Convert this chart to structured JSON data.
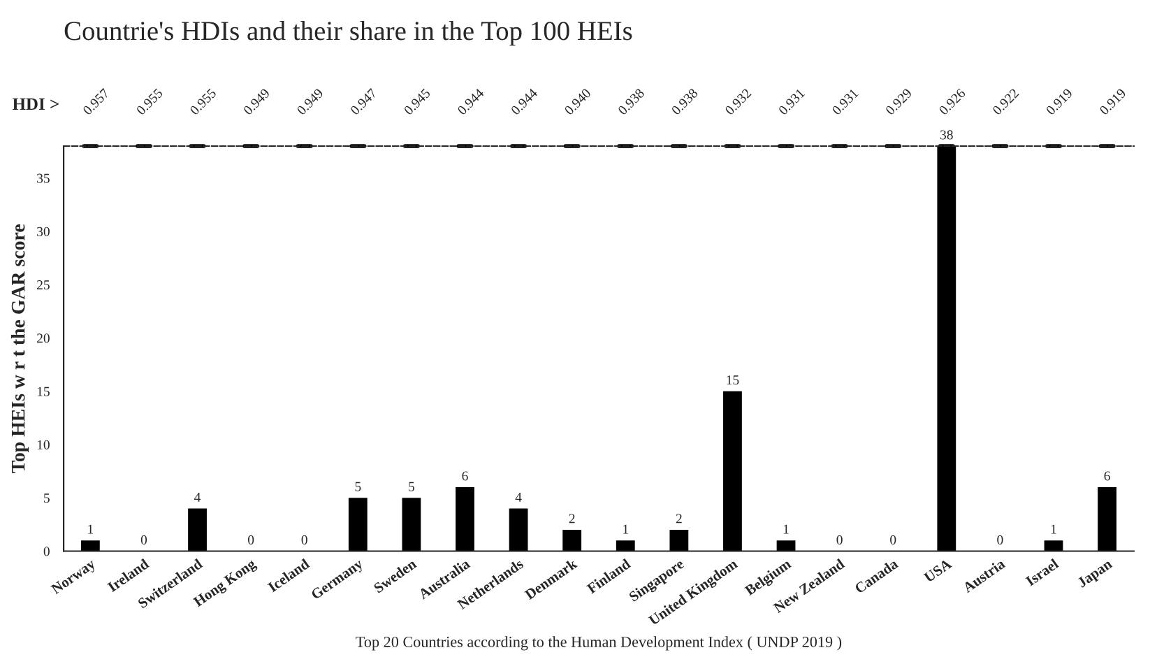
{
  "chart_data": {
    "type": "bar",
    "title": "Countrie's HDIs and their share in the Top 100 HEIs",
    "xlabel": "Top 20 Countries according to the Human Development Index ( UNDP 2019 )",
    "ylabel": "Top HEIs w r t the GAR score",
    "categories": [
      "Norway",
      "Ireland",
      "Switzerland",
      "Hong Kong",
      "Iceland",
      "Germany",
      "Sweden",
      "Australia",
      "Netherlands",
      "Denmark",
      "Finland",
      "Singapore",
      "United Kingdom",
      "Belgium",
      "New Zealand",
      "Canada",
      "USA",
      "Austria",
      "Israel",
      "Japan"
    ],
    "values": [
      1,
      0,
      4,
      0,
      0,
      5,
      5,
      6,
      4,
      2,
      1,
      2,
      15,
      1,
      0,
      0,
      38,
      0,
      1,
      6
    ],
    "color": "#000000",
    "data_labels": true,
    "ylim": [
      0,
      38
    ],
    "yticks": [
      0,
      5,
      10,
      15,
      20,
      25,
      30,
      35
    ],
    "annotations": [
      "HDI >",
      "0.957",
      "0.955",
      "0.955",
      "0.949",
      "0.949",
      "0.947",
      "0.945",
      "0.944",
      "0.944",
      "0.940",
      "0.938",
      "0.938",
      "0.932",
      "0.931",
      "0.931",
      "0.929",
      "0.926",
      "0.922",
      "0.919",
      "0.919"
    ],
    "grid": false,
    "legend": false
  }
}
